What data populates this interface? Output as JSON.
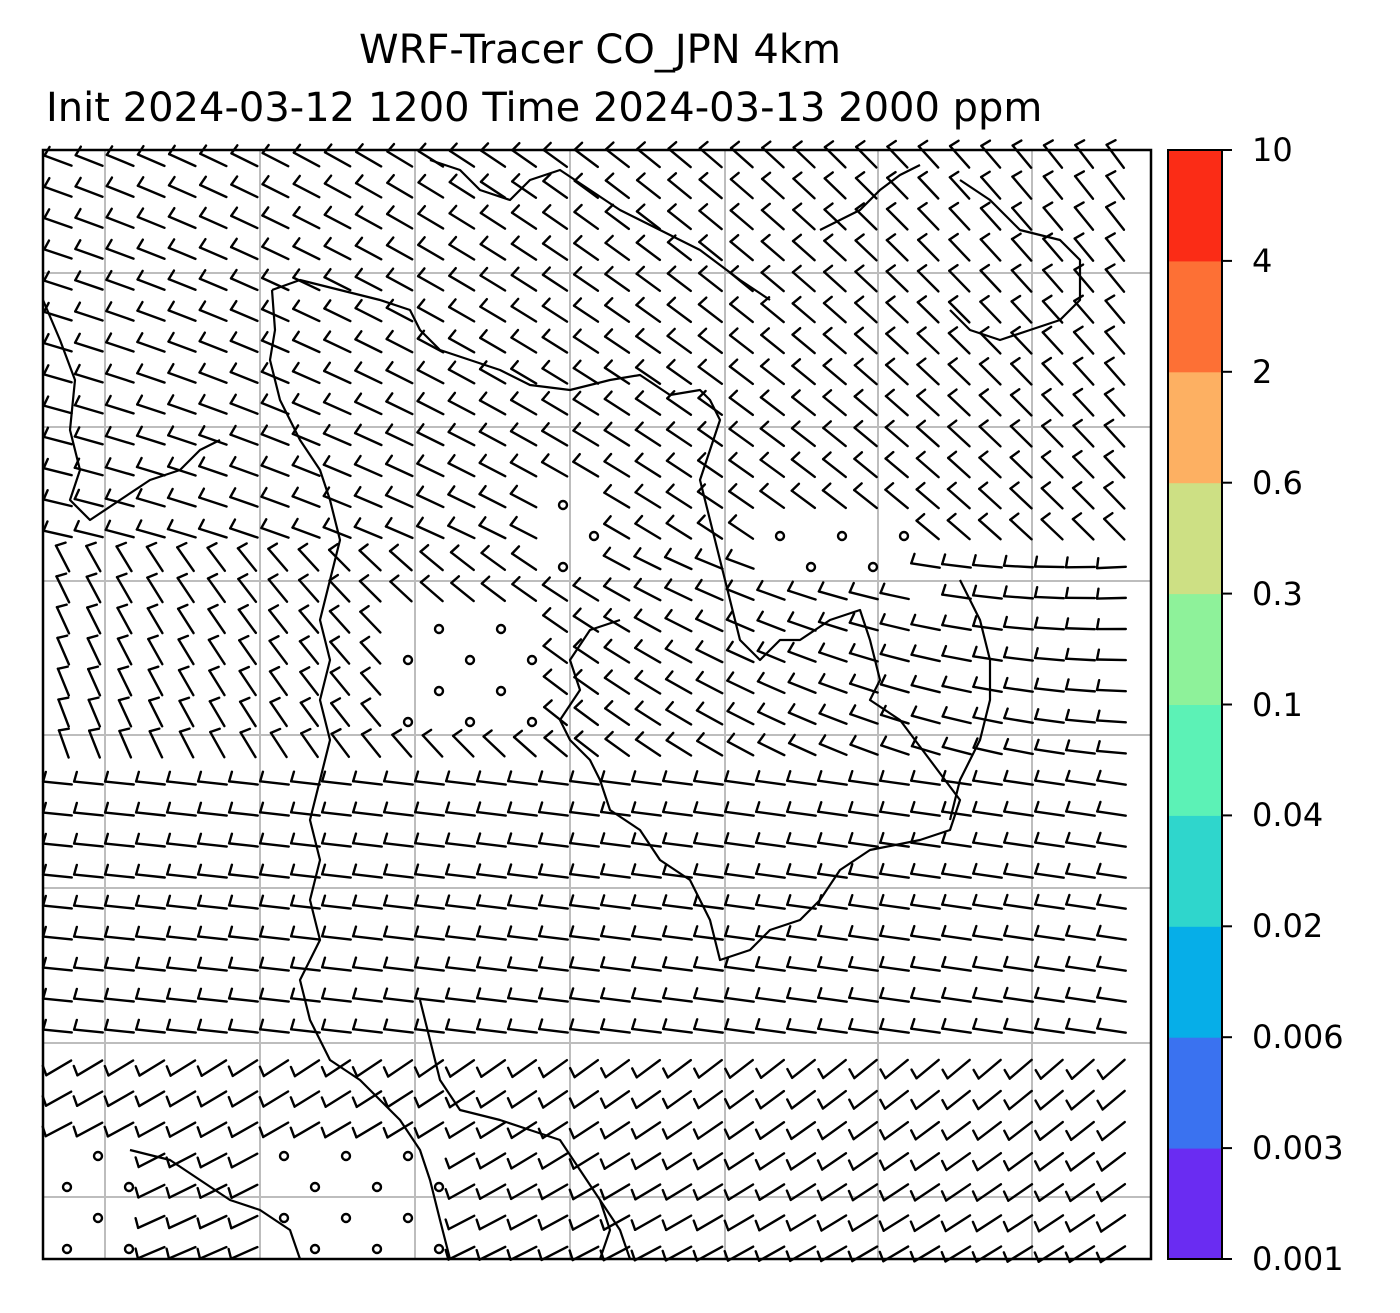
{
  "title": {
    "line1": "WRF-Tracer CO_JPN 4km",
    "line2": "Init 2024-03-12 1200 Time 2024-03-13 2000 ppm"
  },
  "map": {
    "content": "wind barbs over coastline map with graticule; small circles mark calm/weak wind points"
  },
  "colorbar": {
    "levels": [
      "0.001",
      "0.003",
      "0.006",
      "0.02",
      "0.04",
      "0.1",
      "0.3",
      "0.6",
      "2",
      "4",
      "10"
    ],
    "colors": [
      "#6a2cf2",
      "#3a72f0",
      "#06aee8",
      "#2fd6cc",
      "#5cf2b6",
      "#8ef29a",
      "#cde084",
      "#fdb062",
      "#fd7035",
      "#fb2c16"
    ]
  }
}
